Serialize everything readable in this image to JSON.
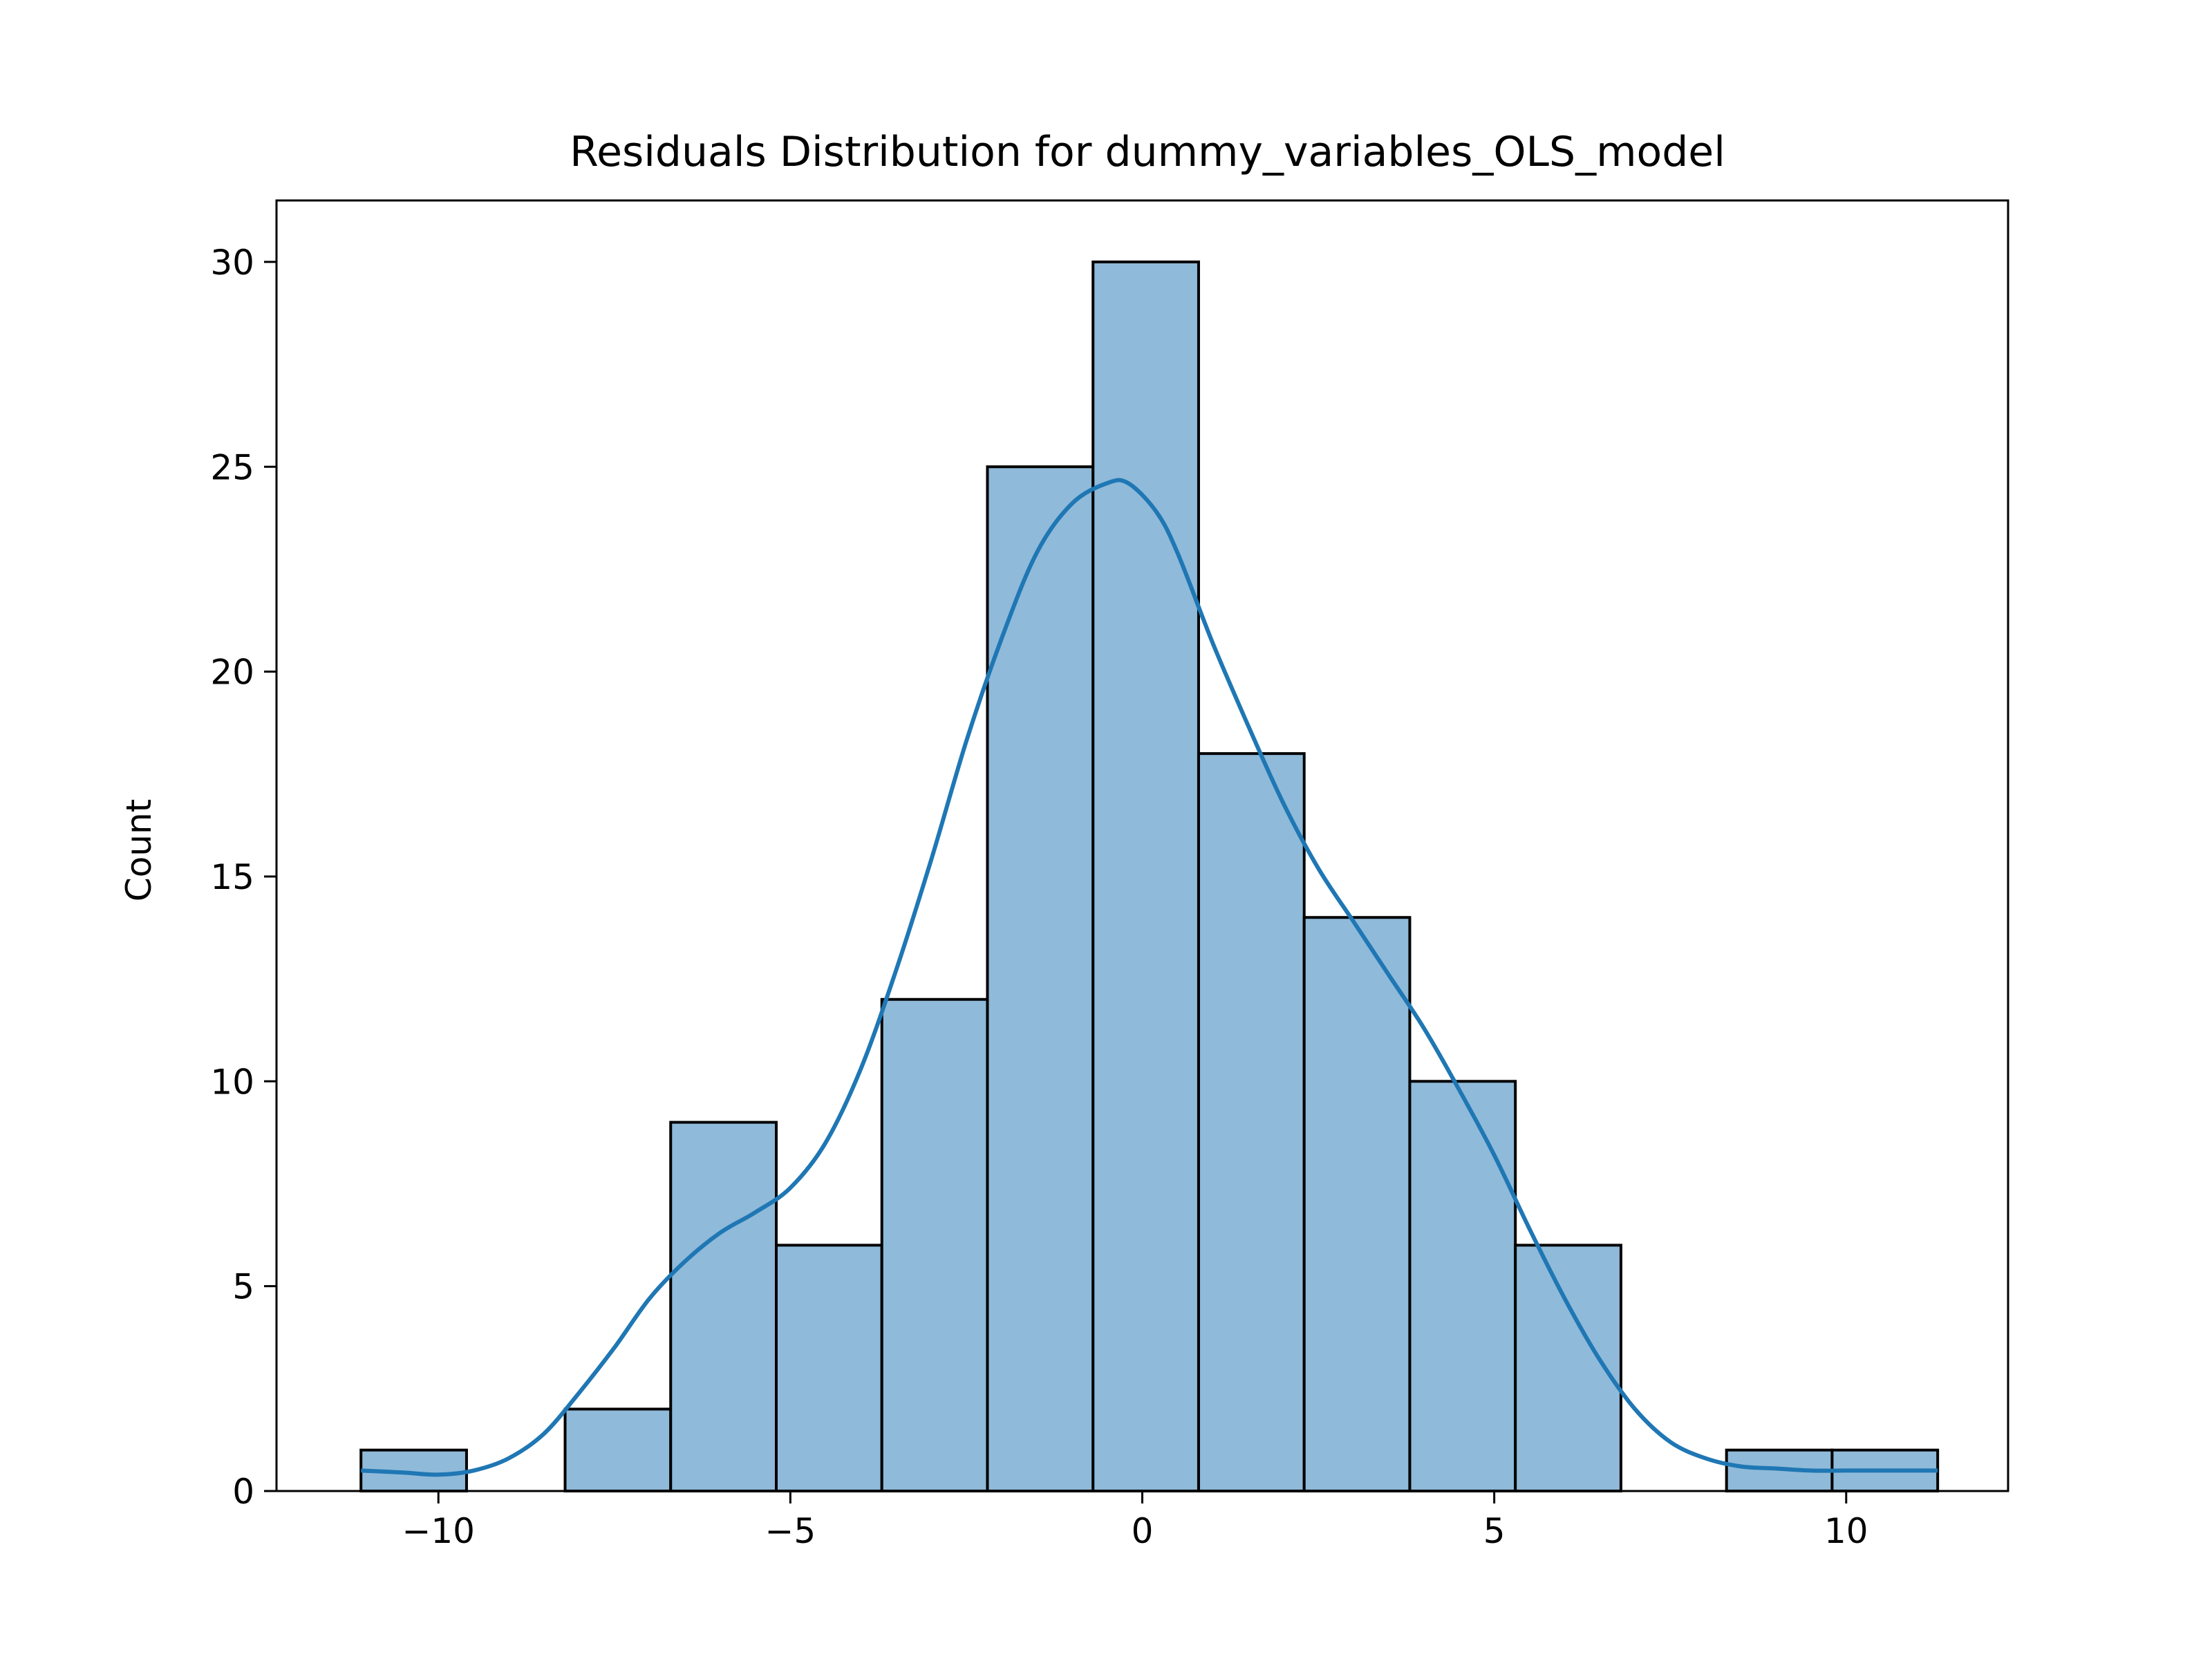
{
  "chart_data": {
    "type": "bar",
    "title": "Residuals Distribution for dummy_variables_OLS_model",
    "xlabel": "",
    "ylabel": "Count",
    "xlim": [
      -12.3,
      12.3
    ],
    "ylim": [
      0,
      31.5
    ],
    "grid": false,
    "colors": {
      "bar_fill": "#8fbad9",
      "bar_edge": "#000000",
      "kde_line": "#1f77b4"
    },
    "bins": [
      {
        "x0": -11.1,
        "x1": -9.6,
        "count": 1
      },
      {
        "x0": -9.6,
        "x1": -8.2,
        "count": 0
      },
      {
        "x0": -8.2,
        "x1": -6.7,
        "count": 2
      },
      {
        "x0": -6.7,
        "x1": -5.2,
        "count": 9
      },
      {
        "x0": -5.2,
        "x1": -3.7,
        "count": 6
      },
      {
        "x0": -3.7,
        "x1": -2.2,
        "count": 12
      },
      {
        "x0": -2.2,
        "x1": -0.7,
        "count": 25
      },
      {
        "x0": -0.7,
        "x1": 0.8,
        "count": 30
      },
      {
        "x0": 0.8,
        "x1": 2.3,
        "count": 18
      },
      {
        "x0": 2.3,
        "x1": 3.8,
        "count": 14
      },
      {
        "x0": 3.8,
        "x1": 5.3,
        "count": 10
      },
      {
        "x0": 5.3,
        "x1": 6.8,
        "count": 6
      },
      {
        "x0": 6.8,
        "x1": 8.3,
        "count": 0
      },
      {
        "x0": 8.3,
        "x1": 9.8,
        "count": 1
      },
      {
        "x0": 9.8,
        "x1": 11.3,
        "count": 1
      }
    ],
    "kde": {
      "x": [
        -11.1,
        -10.5,
        -10.0,
        -9.5,
        -9.0,
        -8.5,
        -8.0,
        -7.5,
        -7.0,
        -6.5,
        -6.0,
        -5.5,
        -5.0,
        -4.5,
        -4.0,
        -3.5,
        -3.0,
        -2.5,
        -2.0,
        -1.5,
        -1.0,
        -0.5,
        -0.2,
        0.2,
        0.5,
        1.0,
        1.5,
        2.0,
        2.5,
        3.0,
        3.5,
        4.0,
        4.5,
        5.0,
        5.5,
        6.0,
        6.5,
        7.0,
        7.5,
        8.0,
        8.5,
        9.0,
        9.5,
        10.0,
        10.5,
        11.3
      ],
      "y": [
        0.5,
        0.45,
        0.4,
        0.5,
        0.8,
        1.4,
        2.4,
        3.5,
        4.7,
        5.6,
        6.3,
        6.8,
        7.4,
        8.5,
        10.3,
        12.7,
        15.4,
        18.3,
        20.8,
        22.9,
        24.1,
        24.6,
        24.6,
        23.9,
        22.9,
        20.7,
        18.7,
        16.8,
        15.2,
        13.9,
        12.6,
        11.3,
        9.8,
        8.2,
        6.4,
        4.7,
        3.2,
        2.0,
        1.2,
        0.8,
        0.6,
        0.55,
        0.5,
        0.5,
        0.5,
        0.5
      ]
    },
    "x_ticks": [
      {
        "value": -10,
        "label": "−10"
      },
      {
        "value": -5,
        "label": "−5"
      },
      {
        "value": 0,
        "label": "0"
      },
      {
        "value": 5,
        "label": "5"
      },
      {
        "value": 10,
        "label": "10"
      }
    ],
    "y_ticks": [
      {
        "value": 0,
        "label": "0"
      },
      {
        "value": 5,
        "label": "5"
      },
      {
        "value": 10,
        "label": "10"
      },
      {
        "value": 15,
        "label": "15"
      },
      {
        "value": 20,
        "label": "20"
      },
      {
        "value": 25,
        "label": "25"
      },
      {
        "value": 30,
        "label": "30"
      }
    ]
  }
}
